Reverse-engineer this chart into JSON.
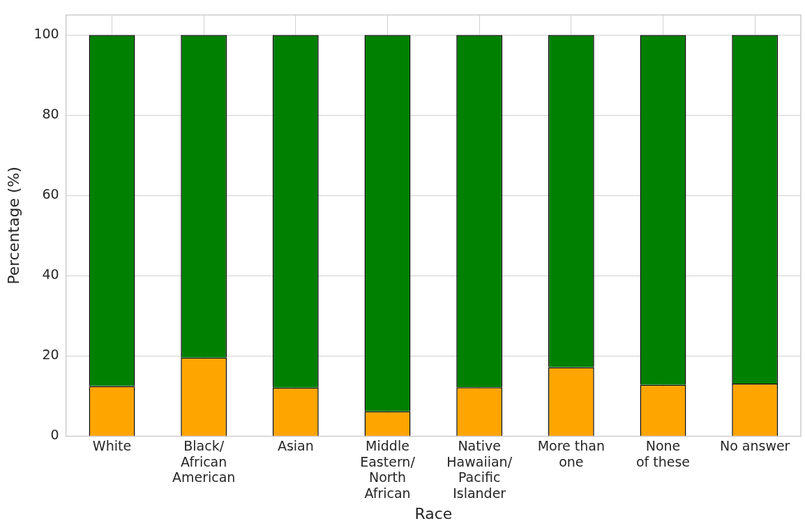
{
  "chart_data": {
    "type": "bar",
    "stacked": true,
    "xlabel": "Race",
    "ylabel": "Percentage (%)",
    "categories": [
      "White",
      "Black/\nAfrican\nAmerican",
      "Asian",
      "Middle\nEastern/\nNorth\nAfrican",
      "Native\nHawaiian/\nPacific\nIslander",
      "More than\none",
      "None\nof these",
      "No answer"
    ],
    "series": [
      {
        "color": "#ffa500",
        "values": [
          12.5,
          19.6,
          12.1,
          6.2,
          12.2,
          17.2,
          12.8,
          13.1
        ]
      },
      {
        "color": "#008000",
        "values": [
          87.5,
          80.4,
          87.9,
          93.8,
          87.8,
          82.8,
          87.2,
          86.9
        ]
      }
    ],
    "ylim": [
      0,
      105
    ],
    "yticks": [
      0,
      20,
      40,
      60,
      80,
      100
    ],
    "grid": true,
    "legend": false
  }
}
